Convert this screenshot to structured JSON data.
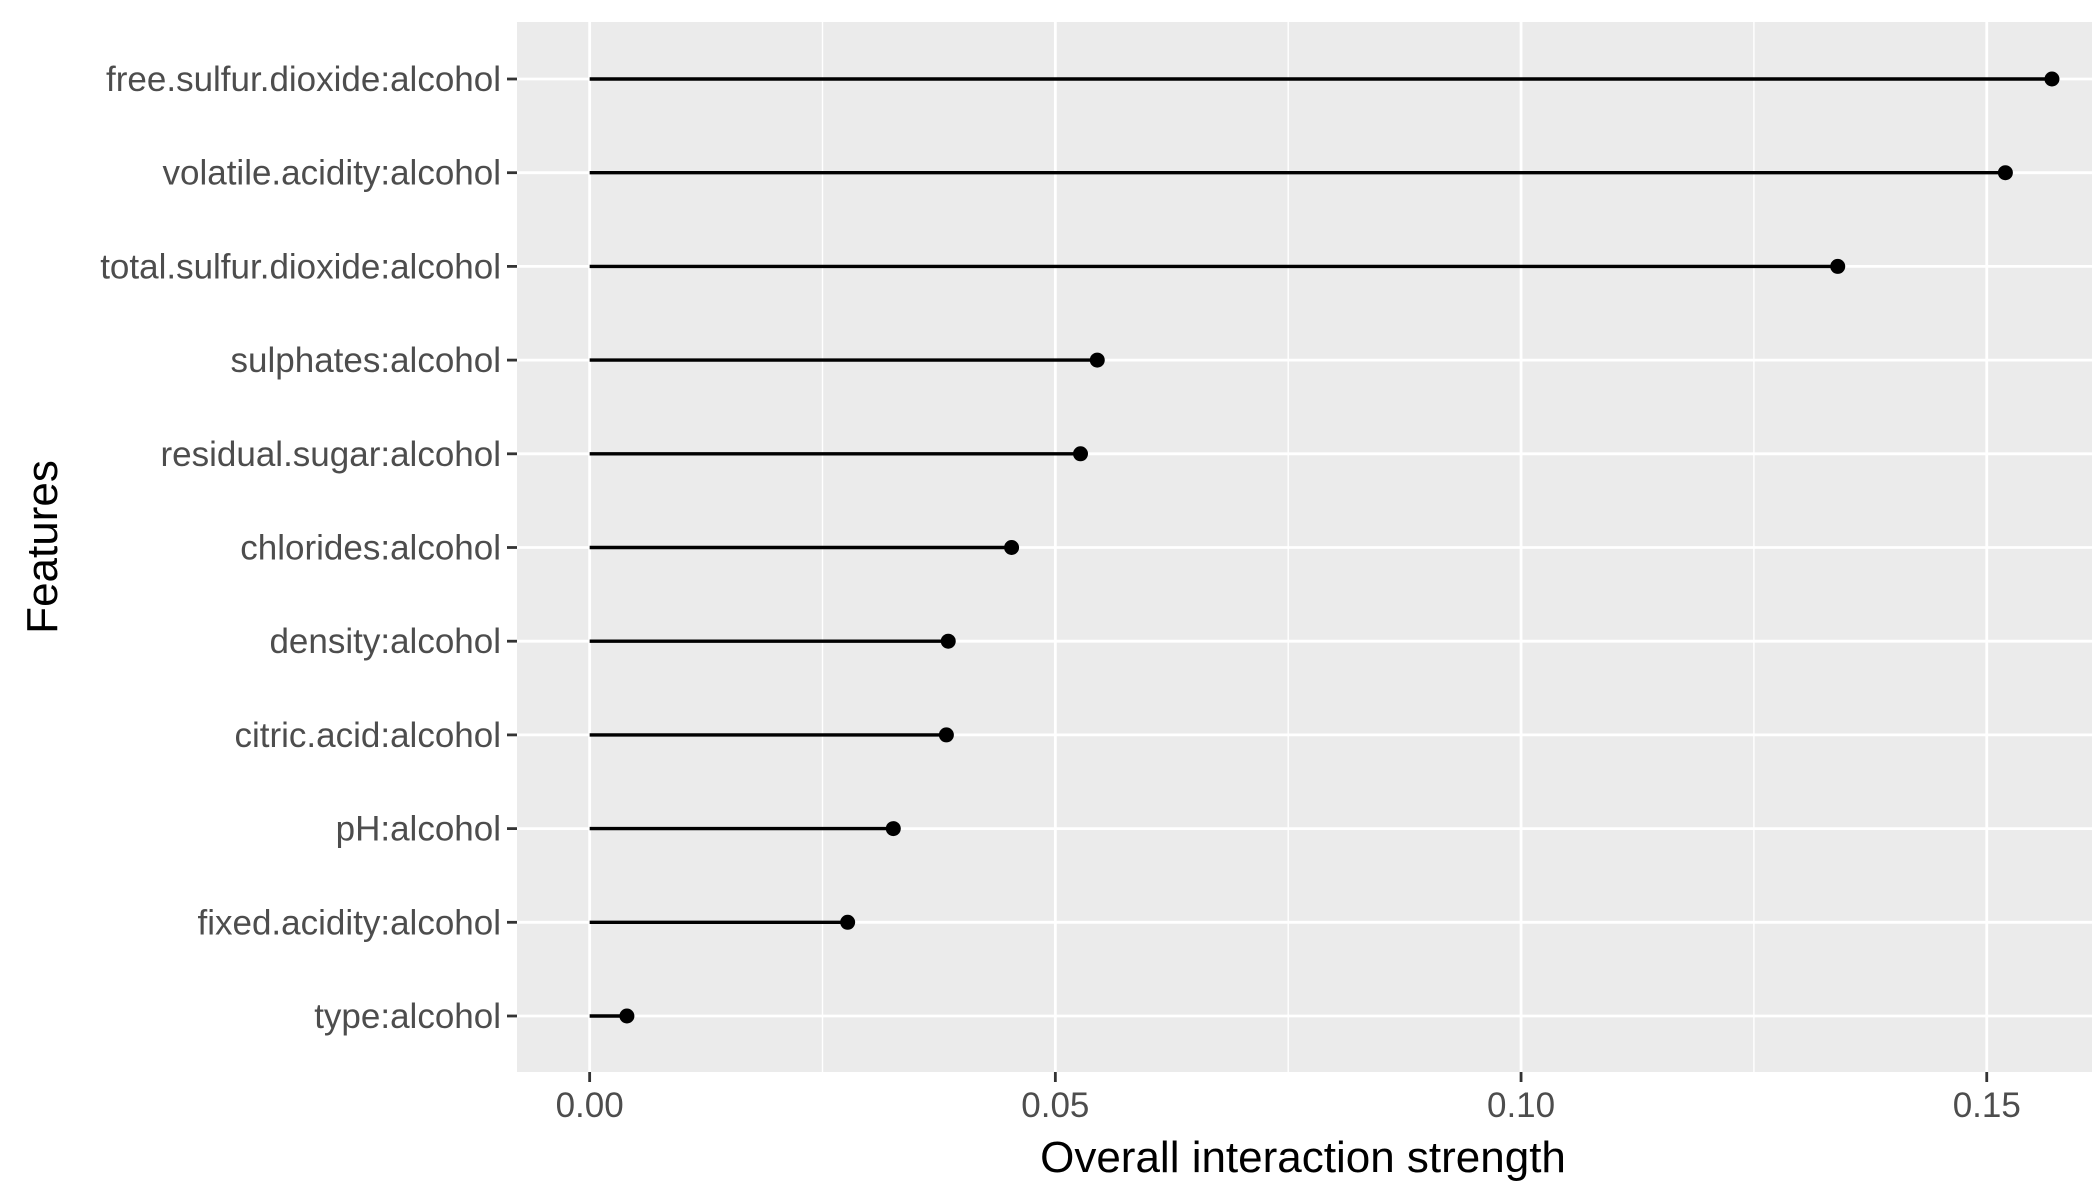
{
  "chart_data": {
    "type": "lollipop",
    "xlabel": "Overall interaction strength",
    "ylabel": "Features",
    "xlim": [
      -0.0078,
      0.1613
    ],
    "x_ticks": [
      0.0,
      0.05,
      0.1,
      0.15
    ],
    "x_tick_labels": [
      "0.00",
      "0.05",
      "0.10",
      "0.15"
    ],
    "grid": true,
    "categories": [
      "free.sulfur.dioxide:alcohol",
      "volatile.acidity:alcohol",
      "total.sulfur.dioxide:alcohol",
      "sulphates:alcohol",
      "residual.sugar:alcohol",
      "chlorides:alcohol",
      "density:alcohol",
      "citric.acid:alcohol",
      "pH:alcohol",
      "fixed.acidity:alcohol",
      "type:alcohol"
    ],
    "values": [
      0.157,
      0.152,
      0.134,
      0.0545,
      0.0527,
      0.0453,
      0.0385,
      0.0383,
      0.0326,
      0.0277,
      0.004
    ],
    "colors": {
      "panel": "#EBEBEB",
      "grid": "#FFFFFF",
      "mark": "#000000",
      "tick_text": "#4D4D4D",
      "tick_mark": "#333333"
    }
  }
}
